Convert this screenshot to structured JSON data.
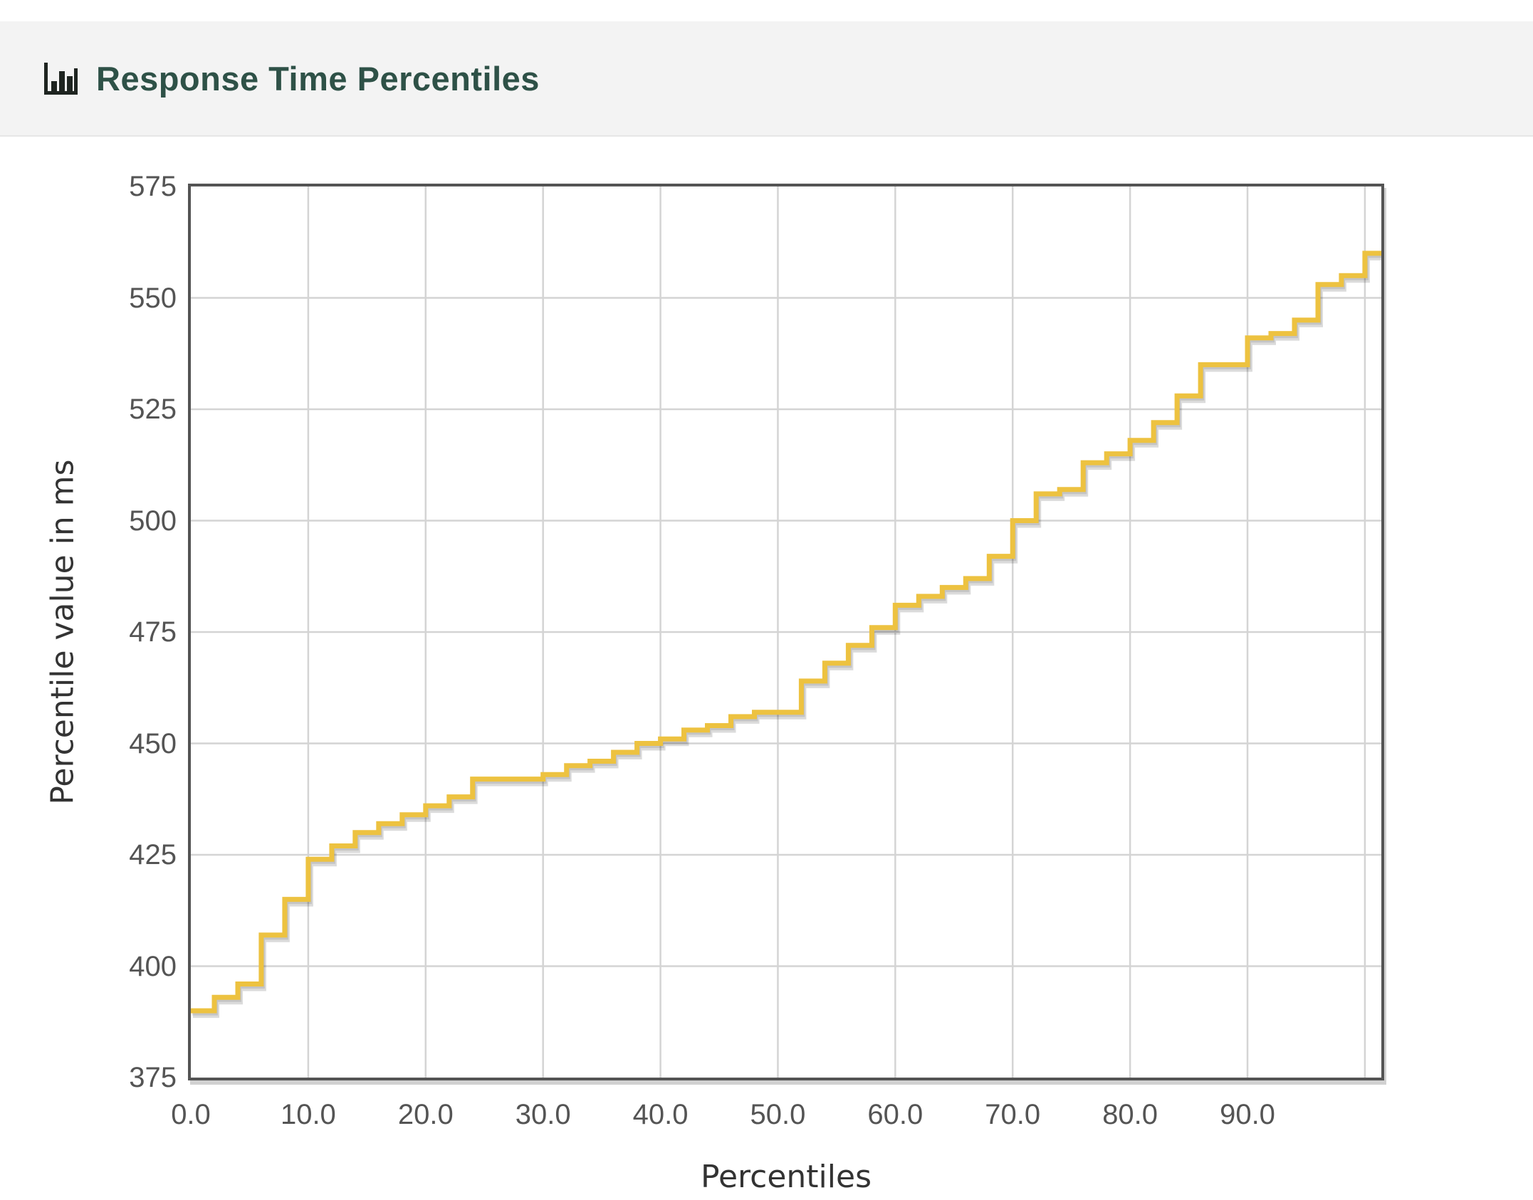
{
  "header": {
    "icon": "bar-chart-icon",
    "title": "Response Time Percentiles"
  },
  "colors": {
    "line": "#EDC240",
    "line_shadow": "rgba(0,0,0,0.14)",
    "grid": "#d4d4d4",
    "plot_border": "#545454",
    "tick_label": "#545454",
    "axis_title": "#333333",
    "panel_background": "#f3f3f3",
    "panel_title": "#2e5147",
    "page_background": "#ffffff"
  },
  "chart_data": {
    "type": "line",
    "step_mode": "step-after",
    "title": "Response Time Percentiles",
    "xlabel": "Percentiles",
    "ylabel": "Percentile value in ms",
    "xlim": [
      0,
      101.4
    ],
    "ylim": [
      375,
      575
    ],
    "grid": true,
    "legend_position": "none",
    "x_ticks": [
      0,
      10,
      20,
      30,
      40,
      50,
      60,
      70,
      80,
      90
    ],
    "x_tick_labels": [
      "0.0",
      "10.0",
      "20.0",
      "30.0",
      "40.0",
      "50.0",
      "60.0",
      "70.0",
      "80.0",
      "90.0"
    ],
    "x_gridlines": [
      10,
      20,
      30,
      40,
      50,
      60,
      70,
      80,
      90,
      100
    ],
    "y_ticks": [
      375,
      400,
      425,
      450,
      475,
      500,
      525,
      550,
      575
    ],
    "y_tick_labels": [
      "375",
      "400",
      "425",
      "450",
      "475",
      "500",
      "525",
      "550",
      "575"
    ],
    "y_gridlines": [
      400,
      425,
      450,
      475,
      500,
      525,
      550
    ],
    "series": [
      {
        "name": "Percentile value in ms",
        "color": "#EDC240",
        "x": [
          0,
          2,
          4,
          6,
          8,
          10,
          12,
          14,
          16,
          18,
          20,
          22,
          24,
          26,
          28,
          30,
          32,
          34,
          36,
          38,
          40,
          42,
          44,
          46,
          48,
          50,
          52,
          54,
          56,
          58,
          60,
          62,
          64,
          66,
          68,
          70,
          72,
          74,
          76,
          78,
          80,
          82,
          84,
          86,
          88,
          90,
          92,
          94,
          96,
          98,
          100
        ],
        "y": [
          390,
          393,
          396,
          407,
          415,
          424,
          427,
          430,
          432,
          434,
          436,
          438,
          442,
          442,
          442,
          443,
          445,
          446,
          448,
          450,
          451,
          453,
          454,
          456,
          457,
          457,
          464,
          468,
          472,
          476,
          481,
          483,
          485,
          487,
          492,
          500,
          506,
          507,
          513,
          515,
          518,
          522,
          528,
          535,
          535,
          541,
          542,
          545,
          553,
          555,
          560
        ]
      }
    ]
  }
}
